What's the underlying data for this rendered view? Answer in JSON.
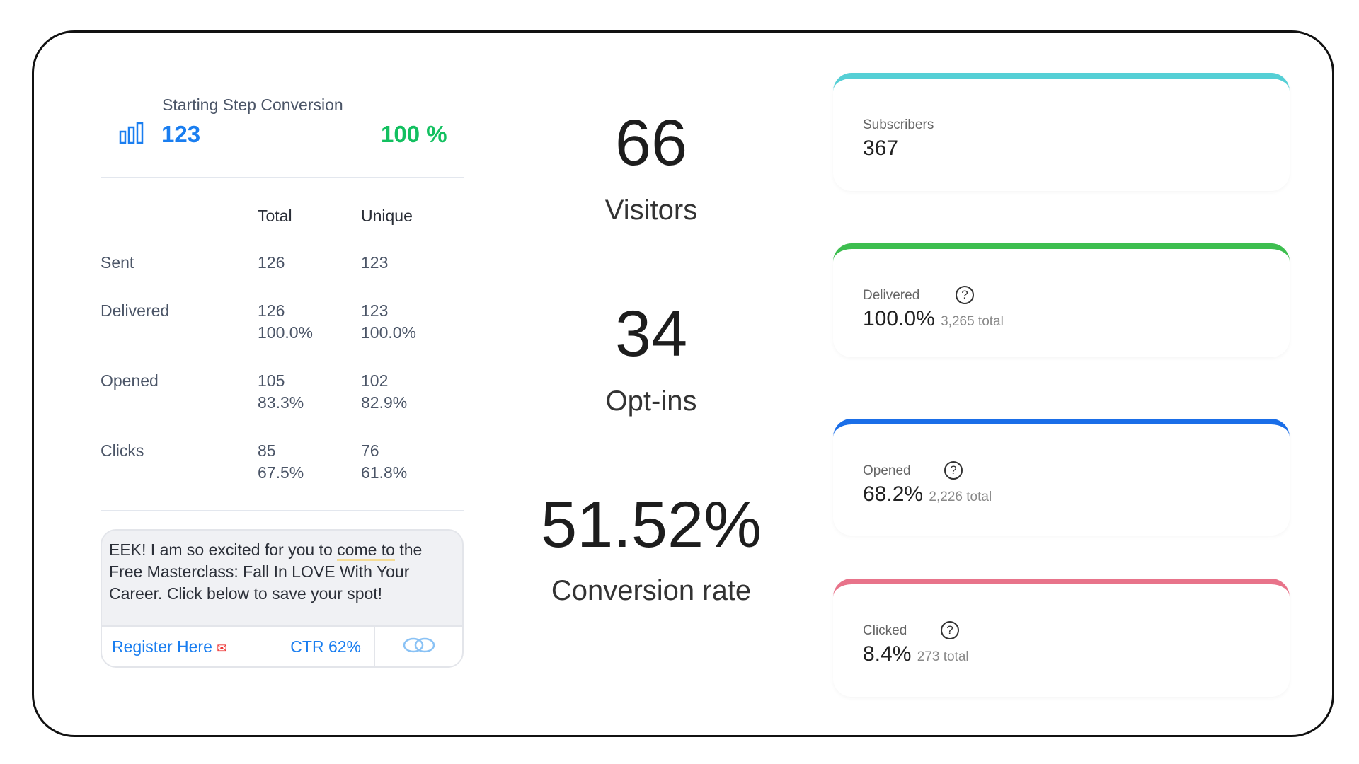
{
  "summary": {
    "title": "Starting Step Conversion",
    "count": "123",
    "percent": "100 %"
  },
  "table": {
    "headers": [
      "Total",
      "Unique"
    ],
    "rows": [
      {
        "label": "Sent",
        "total": "126",
        "unique": "123",
        "total_pct": "",
        "unique_pct": ""
      },
      {
        "label": "Delivered",
        "total": "126",
        "unique": "123",
        "total_pct": "100.0%",
        "unique_pct": "100.0%"
      },
      {
        "label": "Opened",
        "total": "105",
        "unique": "102",
        "total_pct": "83.3%",
        "unique_pct": "82.9%"
      },
      {
        "label": "Clicks",
        "total": "85",
        "unique": "76",
        "total_pct": "67.5%",
        "unique_pct": "61.8%"
      }
    ]
  },
  "message": {
    "text_before": "EEK! I am so excited for you to ",
    "highlight": "come to",
    "text_after": " the Free Masterclass: Fall In LOVE With Your Career. Click below to save your spot!",
    "button": "Register Here",
    "ctr": "CTR 62%"
  },
  "center": {
    "visitors": "66",
    "visitors_label": "Visitors",
    "optins": "34",
    "optins_label": "Opt-ins",
    "rate": "51.52%",
    "rate_label": "Conversion rate"
  },
  "cards": [
    {
      "title": "Subscribers",
      "value": "367",
      "sub": "",
      "color": "#55cfd5"
    },
    {
      "title": "Delivered",
      "value": "100.0%",
      "sub": "3,265 total",
      "color": "#3dbe4f"
    },
    {
      "title": "Opened",
      "value": "68.2%",
      "sub": "2,226 total",
      "color": "#1a6ee8"
    },
    {
      "title": "Clicked",
      "value": "8.4%",
      "sub": "273 total",
      "color": "#e8738a"
    }
  ]
}
